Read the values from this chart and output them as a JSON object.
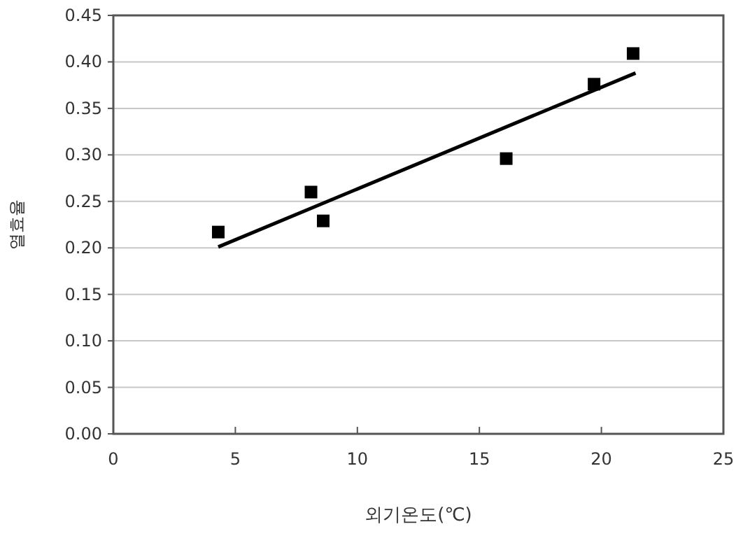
{
  "chart_data": {
    "type": "scatter",
    "xlabel": "외기온도(℃)",
    "ylabel": "열효율",
    "xlim": [
      0,
      25
    ],
    "xticks": [
      0,
      5,
      10,
      15,
      20,
      25
    ],
    "ylim": [
      0,
      0.45
    ],
    "yticks": [
      {
        "value": 0,
        "label": "0.00"
      },
      {
        "value": 0.05,
        "label": "0.05"
      },
      {
        "value": 0.1,
        "label": "0.10"
      },
      {
        "value": 0.15,
        "label": "0.15"
      },
      {
        "value": 0.2,
        "label": "0.20"
      },
      {
        "value": 0.25,
        "label": "0.25"
      },
      {
        "value": 0.3,
        "label": "0.30"
      },
      {
        "value": 0.35,
        "label": "0.35"
      },
      {
        "value": 0.4,
        "label": "0.40"
      },
      {
        "value": 0.45,
        "label": "0.45"
      }
    ],
    "grid": "y",
    "series": [
      {
        "color": "#000000",
        "marker": "square",
        "x": [
          4.3,
          8.1,
          8.6,
          16.1,
          19.7,
          21.3
        ],
        "values": [
          0.217,
          0.26,
          0.229,
          0.296,
          0.376,
          0.409
        ]
      },
      {
        "type": "line",
        "color": "#000000",
        "x": [
          4.3,
          21.4
        ],
        "values": [
          0.201,
          0.388
        ]
      }
    ]
  }
}
